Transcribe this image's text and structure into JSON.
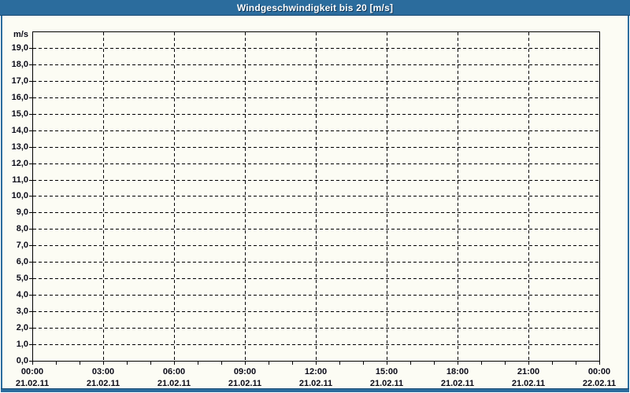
{
  "window": {
    "title": "Windgeschwindigkeit bis 20 [m/s]"
  },
  "colors": {
    "frame_blue": "#2b6c9d",
    "frame_dark_line": "#1a4a72",
    "background": "#fcfcf4",
    "grid": "#000000",
    "axis": "#000000",
    "label_text": "#0b0b18",
    "title_text": "#ffffff"
  },
  "chart_data": {
    "type": "line",
    "title": "Windgeschwindigkeit bis 20 [m/s]",
    "ylabel": "m/s",
    "xlabel": "",
    "ylim": [
      0,
      20
    ],
    "y_tick_step": 1.0,
    "y_tick_labels": [
      "0,0",
      "1,0",
      "2,0",
      "3,0",
      "4,0",
      "5,0",
      "6,0",
      "7,0",
      "8,0",
      "9,0",
      "10,0",
      "11,0",
      "12,0",
      "13,0",
      "14,0",
      "15,0",
      "16,0",
      "17,0",
      "18,0",
      "19,0"
    ],
    "x_ticks": [
      {
        "time": "00:00",
        "date": "21.02.11"
      },
      {
        "time": "03:00",
        "date": "21.02.11"
      },
      {
        "time": "06:00",
        "date": "21.02.11"
      },
      {
        "time": "09:00",
        "date": "21.02.11"
      },
      {
        "time": "12:00",
        "date": "21.02.11"
      },
      {
        "time": "15:00",
        "date": "21.02.11"
      },
      {
        "time": "18:00",
        "date": "21.02.11"
      },
      {
        "time": "21:00",
        "date": "21.02.11"
      },
      {
        "time": "00:00",
        "date": "22.02.11"
      }
    ],
    "minor_x_ticks": "hourly",
    "minor_ticks_between_major": 2,
    "grid": "dashed",
    "legend": "none",
    "series": []
  }
}
